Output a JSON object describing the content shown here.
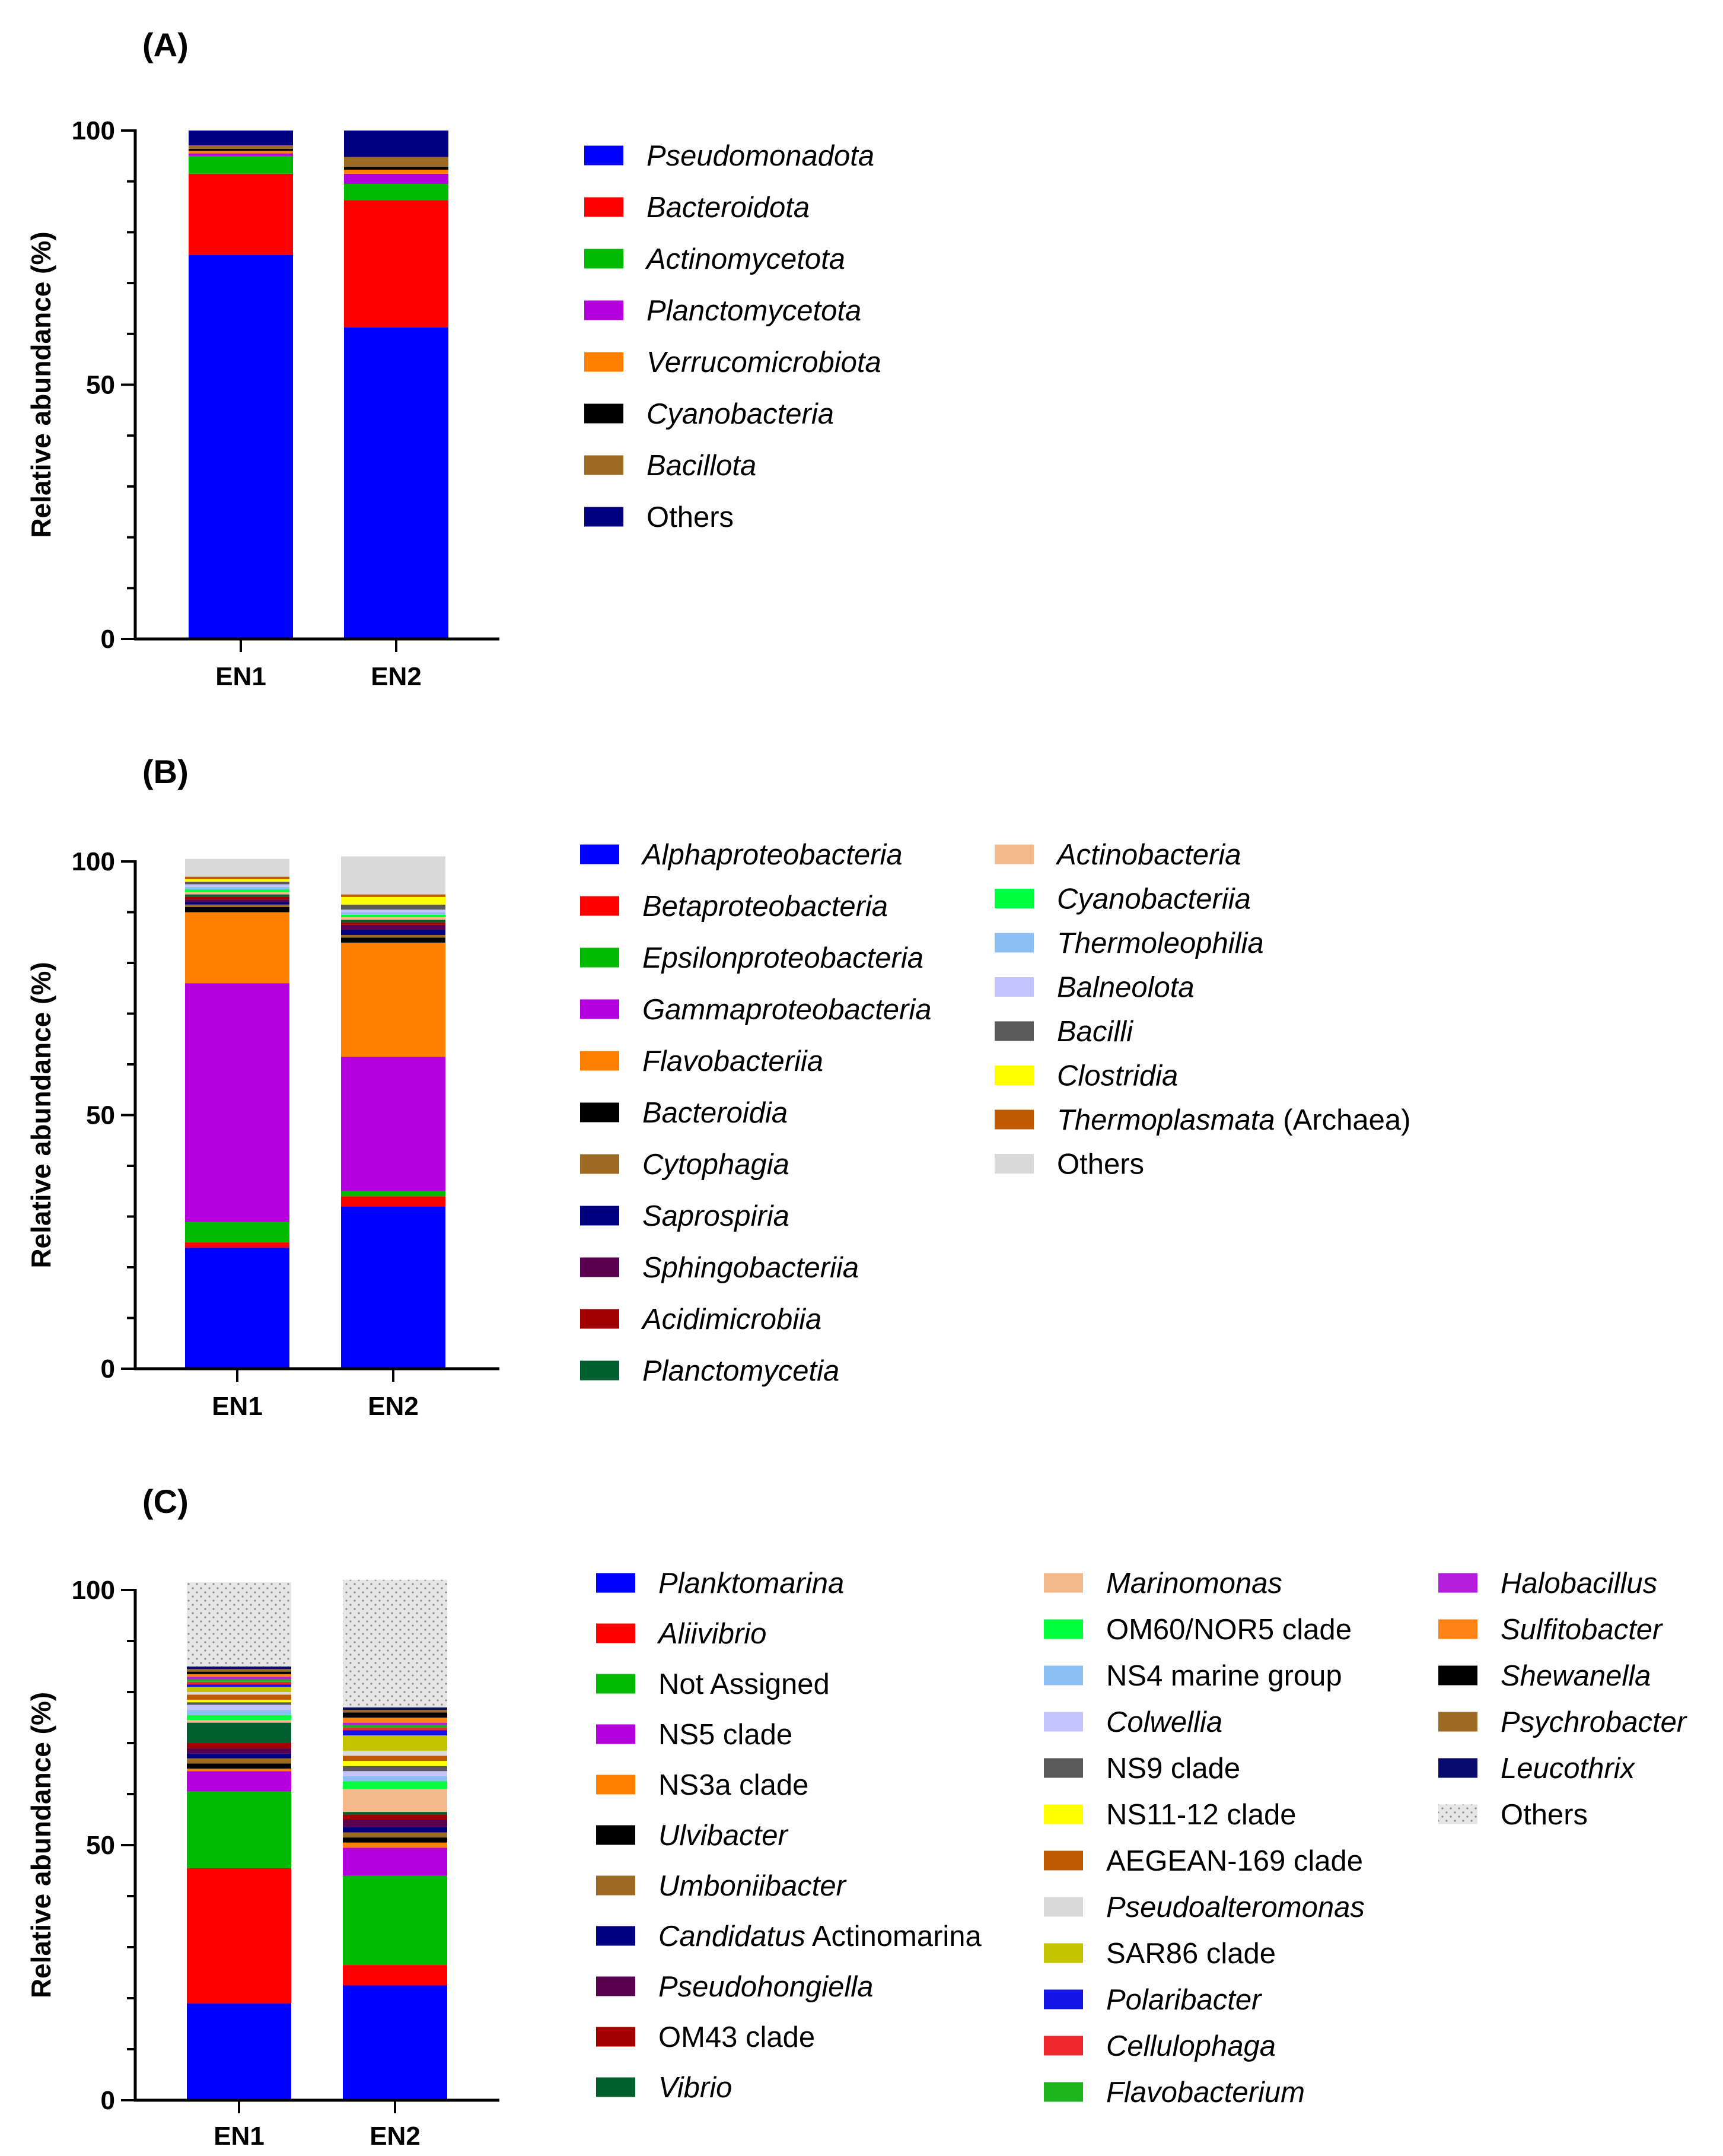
{
  "chart_data": [
    {
      "type": "bar",
      "stacked": true,
      "panel_label": "(A)",
      "ylabel": "Relative abundance (%)",
      "ylim": [
        0,
        100
      ],
      "yticks": [
        0,
        50,
        100
      ],
      "categories": [
        "EN1",
        "EN2"
      ],
      "legend_columns": 1,
      "series": [
        {
          "name": "Pseudomonadota",
          "italic": true,
          "color": "#0000FF",
          "values": [
            75.5,
            61.3
          ]
        },
        {
          "name": "Bacteroidota",
          "italic": true,
          "color": "#FF0000",
          "values": [
            16.0,
            25.0
          ]
        },
        {
          "name": "Actinomycetota",
          "italic": true,
          "color": "#00BB00",
          "values": [
            3.5,
            3.2
          ]
        },
        {
          "name": "Planctomycetota",
          "italic": true,
          "color": "#B400DC",
          "values": [
            0.5,
            2.0
          ]
        },
        {
          "name": "Verrucomicrobiota",
          "italic": true,
          "color": "#FF8000",
          "values": [
            0.5,
            0.8
          ]
        },
        {
          "name": "Cyanobacteria",
          "italic": true,
          "color": "#000000",
          "values": [
            0.4,
            0.6
          ]
        },
        {
          "name": "Bacillota",
          "italic": true,
          "color": "#9C6A22",
          "values": [
            0.7,
            1.9
          ]
        },
        {
          "name": "Others",
          "italic": false,
          "color": "#000080",
          "values": [
            2.9,
            5.2
          ]
        }
      ]
    },
    {
      "type": "bar",
      "stacked": true,
      "panel_label": "(B)",
      "ylabel": "Relative abundance (%)",
      "ylim": [
        0,
        100
      ],
      "yticks": [
        0,
        50,
        100
      ],
      "categories": [
        "EN1",
        "EN2"
      ],
      "legend_columns": 2,
      "series": [
        {
          "name": "Alphaproteobacteria",
          "italic": true,
          "color": "#0000FF",
          "values": [
            23.9,
            32.0
          ]
        },
        {
          "name": "Betaproteobacteria",
          "italic": true,
          "color": "#FF0000",
          "values": [
            1.0,
            2.0
          ]
        },
        {
          "name": "Epsilonproteobacteria",
          "italic": true,
          "color": "#00BB00",
          "values": [
            4.0,
            1.0
          ]
        },
        {
          "name": "Gammaproteobacteria",
          "italic": true,
          "color": "#B400DC",
          "values": [
            47.1,
            26.5
          ]
        },
        {
          "name": "Flavobacteriia",
          "italic": true,
          "color": "#FF8000",
          "values": [
            14.0,
            22.5
          ]
        },
        {
          "name": "Bacteroidia",
          "italic": true,
          "color": "#000000",
          "values": [
            1.0,
            1.0
          ]
        },
        {
          "name": "Cytophagia",
          "italic": true,
          "color": "#9C6A22",
          "values": [
            0.5,
            0.5
          ]
        },
        {
          "name": "Saprospiria",
          "italic": true,
          "color": "#000080",
          "values": [
            0.5,
            1.0
          ]
        },
        {
          "name": "Sphingobacteriia",
          "italic": true,
          "color": "#5A0050",
          "values": [
            0.5,
            1.0
          ]
        },
        {
          "name": "Acidimicrobiia",
          "italic": true,
          "color": "#A00000",
          "values": [
            0.5,
            0.5
          ]
        },
        {
          "name": "Planctomycetia",
          "italic": true,
          "color": "#006030",
          "values": [
            0.5,
            0.5
          ]
        },
        {
          "name": "Actinobacteria",
          "italic": true,
          "color": "#F5B98A",
          "values": [
            0.5,
            0.5
          ]
        },
        {
          "name": "Cyanobacteriia",
          "italic": true,
          "color": "#00FF3C",
          "values": [
            0.5,
            0.5
          ]
        },
        {
          "name": "Thermoleophilia",
          "italic": true,
          "color": "#8CC0F5",
          "values": [
            0.5,
            0.5
          ]
        },
        {
          "name": "Balneolota",
          "italic": true,
          "color": "#C3C3FF",
          "values": [
            0.5,
            0.5
          ]
        },
        {
          "name": "Bacilli",
          "italic": true,
          "color": "#5A5A5A",
          "values": [
            0.5,
            1.0
          ]
        },
        {
          "name": "Clostridia",
          "italic": true,
          "color": "#FFFF00",
          "values": [
            0.5,
            1.5
          ]
        },
        {
          "name": "Thermoplasmata",
          "suffix": " (Archaea)",
          "italic": true,
          "color": "#C05A00",
          "values": [
            0.5,
            0.5
          ]
        },
        {
          "name": "Others",
          "italic": false,
          "color": "#D9D9D9",
          "values": [
            3.5,
            7.5
          ]
        }
      ]
    },
    {
      "type": "bar",
      "stacked": true,
      "panel_label": "(C)",
      "ylabel": "Relative abundance (%)",
      "ylim": [
        0,
        100
      ],
      "yticks": [
        0,
        50,
        100
      ],
      "categories": [
        "EN1",
        "EN2"
      ],
      "legend_columns": 3,
      "series": [
        {
          "name": "Planktomarina",
          "italic": true,
          "color": "#0000FF",
          "values": [
            19.0,
            22.5
          ]
        },
        {
          "name": "Aliivibrio",
          "italic": true,
          "color": "#FF0000",
          "values": [
            26.5,
            4.0
          ]
        },
        {
          "name": "Not Assigned",
          "italic": false,
          "color": "#00BB00",
          "values": [
            15.0,
            17.5
          ]
        },
        {
          "name": "NS5 clade",
          "italic": false,
          "color": "#B400DC",
          "values": [
            4.0,
            5.5
          ]
        },
        {
          "name": "NS3a clade",
          "italic": false,
          "color": "#FF8000",
          "values": [
            0.5,
            1.0
          ]
        },
        {
          "name": "Ulvibacter",
          "italic": true,
          "color": "#000000",
          "values": [
            1.0,
            1.0
          ]
        },
        {
          "name": "Umboniibacter",
          "italic": true,
          "color": "#9C6A22",
          "values": [
            1.0,
            1.0
          ]
        },
        {
          "name": "Candidatus",
          "suffix": " Actinomarina",
          "italic": true,
          "color": "#000080",
          "values": [
            1.0,
            1.0
          ]
        },
        {
          "name": "Pseudohongiella",
          "italic": true,
          "color": "#5A0050",
          "values": [
            1.0,
            1.5
          ]
        },
        {
          "name": "OM43 clade",
          "italic": false,
          "color": "#A00000",
          "values": [
            1.0,
            1.0
          ]
        },
        {
          "name": "Vibrio",
          "italic": true,
          "color": "#006030",
          "values": [
            4.0,
            0.5
          ]
        },
        {
          "name": "Marinomonas",
          "italic": true,
          "color": "#F5B98A",
          "values": [
            0.5,
            4.5
          ]
        },
        {
          "name": "OM60/NOR5 clade",
          "italic": false,
          "color": "#00FF3C",
          "values": [
            1.0,
            1.5
          ]
        },
        {
          "name": "NS4 marine group",
          "italic": false,
          "color": "#8CC0F5",
          "values": [
            1.0,
            1.0
          ]
        },
        {
          "name": "Colwellia",
          "italic": true,
          "color": "#C3C3FF",
          "values": [
            1.0,
            1.0
          ]
        },
        {
          "name": "NS9 clade",
          "italic": false,
          "color": "#5A5A5A",
          "values": [
            0.5,
            1.0
          ]
        },
        {
          "name": "NS11-12 clade",
          "italic": false,
          "color": "#FFFF00",
          "values": [
            0.5,
            1.0
          ]
        },
        {
          "name": "AEGEAN-169 clade",
          "italic": false,
          "color": "#C05A00",
          "values": [
            1.0,
            1.0
          ]
        },
        {
          "name": "Pseudoalteromonas",
          "italic": true,
          "color": "#D9D9D9",
          "values": [
            0.5,
            1.0
          ]
        },
        {
          "name": "SAR86 clade",
          "italic": false,
          "color": "#C3C300",
          "values": [
            1.0,
            3.0
          ]
        },
        {
          "name": "Polaribacter",
          "italic": true,
          "color": "#1414E6",
          "values": [
            0.5,
            1.0
          ]
        },
        {
          "name": "Cellulophaga",
          "italic": true,
          "color": "#F0282D",
          "values": [
            0.5,
            0.5
          ]
        },
        {
          "name": "Flavobacterium",
          "italic": true,
          "color": "#1EB41E",
          "values": [
            0.5,
            0.5
          ]
        },
        {
          "name": "Halobacillus",
          "italic": true,
          "color": "#B41EDC",
          "values": [
            0.5,
            0.5
          ]
        },
        {
          "name": "Sulfitobacter",
          "italic": true,
          "color": "#FF8214",
          "values": [
            0.5,
            1.0
          ]
        },
        {
          "name": "Shewanella",
          "italic": true,
          "color": "#000000",
          "values": [
            0.5,
            1.0
          ]
        },
        {
          "name": "Psychrobacter",
          "italic": true,
          "color": "#9C6A22",
          "values": [
            0.5,
            0.5
          ]
        },
        {
          "name": "Leucothrix",
          "italic": true,
          "color": "#0A0A6E",
          "values": [
            0.5,
            0.5
          ]
        },
        {
          "name": "Others",
          "italic": false,
          "color": "#DCDCDC",
          "values": [
            16.5,
            25.0
          ]
        }
      ]
    }
  ]
}
